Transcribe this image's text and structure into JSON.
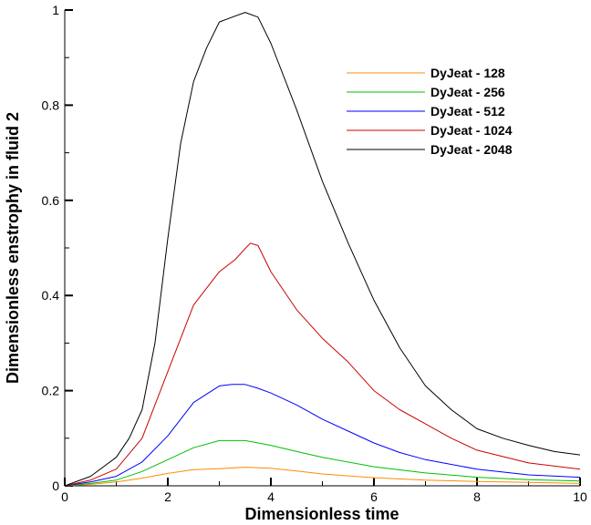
{
  "chart_data": {
    "type": "line",
    "xlabel": "Dimensionless time",
    "ylabel": "Dimensionless enstrophy in fluid 2",
    "xlim": [
      0,
      10
    ],
    "ylim": [
      0,
      1
    ],
    "xticks": [
      0,
      2,
      4,
      6,
      8,
      10
    ],
    "yticks": [
      0,
      0.2,
      0.4,
      0.6,
      0.8,
      1
    ],
    "xtick_labels": [
      "0",
      "2",
      "4",
      "6",
      "8",
      "10"
    ],
    "ytick_labels": [
      "0",
      "0.2",
      "0.4",
      "0.6",
      "0.8",
      "1"
    ],
    "grid": false,
    "legend_position": "top-right",
    "series": [
      {
        "name": "DyJeat - 128",
        "color": "#ff8c00",
        "x": [
          0,
          0.5,
          1.0,
          1.5,
          2.0,
          2.5,
          3.0,
          3.5,
          4.0,
          4.5,
          5.0,
          6.0,
          7.0,
          8.0,
          9.0,
          10.0
        ],
        "y": [
          0,
          0.003,
          0.008,
          0.016,
          0.026,
          0.034,
          0.036,
          0.039,
          0.037,
          0.031,
          0.025,
          0.017,
          0.012,
          0.009,
          0.007,
          0.005
        ]
      },
      {
        "name": "DyJeat - 256",
        "color": "#00c000",
        "x": [
          0,
          0.5,
          1.0,
          1.5,
          2.0,
          2.5,
          3.0,
          3.5,
          4.0,
          4.5,
          5.0,
          6.0,
          7.0,
          8.0,
          9.0,
          10.0
        ],
        "y": [
          0,
          0.005,
          0.012,
          0.03,
          0.055,
          0.08,
          0.095,
          0.095,
          0.085,
          0.072,
          0.06,
          0.04,
          0.027,
          0.018,
          0.013,
          0.01
        ]
      },
      {
        "name": "DyJeat - 512",
        "color": "#0000ff",
        "x": [
          0,
          0.5,
          1.0,
          1.5,
          2.0,
          2.5,
          3.0,
          3.25,
          3.5,
          3.75,
          4.0,
          4.5,
          5.0,
          5.5,
          6.0,
          6.5,
          7.0,
          8.0,
          9.0,
          10.0
        ],
        "y": [
          0,
          0.008,
          0.02,
          0.05,
          0.105,
          0.175,
          0.21,
          0.213,
          0.213,
          0.205,
          0.195,
          0.17,
          0.14,
          0.115,
          0.09,
          0.07,
          0.055,
          0.035,
          0.023,
          0.018
        ]
      },
      {
        "name": "DyJeat - 1024",
        "color": "#cc0000",
        "x": [
          0,
          0.5,
          1.0,
          1.5,
          2.0,
          2.5,
          3.0,
          3.3,
          3.6,
          3.75,
          4.0,
          4.5,
          5.0,
          5.5,
          6.0,
          6.5,
          7.0,
          7.5,
          8.0,
          9.0,
          10.0
        ],
        "y": [
          0,
          0.012,
          0.035,
          0.1,
          0.24,
          0.38,
          0.45,
          0.475,
          0.51,
          0.505,
          0.45,
          0.37,
          0.31,
          0.26,
          0.2,
          0.16,
          0.13,
          0.1,
          0.075,
          0.048,
          0.035
        ]
      },
      {
        "name": "DyJeat - 2048",
        "color": "#000000",
        "x": [
          0,
          0.5,
          1.0,
          1.25,
          1.5,
          1.75,
          2.0,
          2.25,
          2.5,
          2.75,
          3.0,
          3.25,
          3.5,
          3.75,
          4.0,
          4.5,
          5.0,
          5.5,
          6.0,
          6.5,
          7.0,
          7.5,
          8.0,
          8.5,
          9.0,
          9.5,
          10.0
        ],
        "y": [
          0,
          0.02,
          0.06,
          0.1,
          0.16,
          0.3,
          0.52,
          0.72,
          0.85,
          0.92,
          0.975,
          0.985,
          0.995,
          0.985,
          0.93,
          0.79,
          0.64,
          0.51,
          0.39,
          0.29,
          0.21,
          0.16,
          0.12,
          0.1,
          0.085,
          0.072,
          0.065
        ]
      }
    ]
  }
}
